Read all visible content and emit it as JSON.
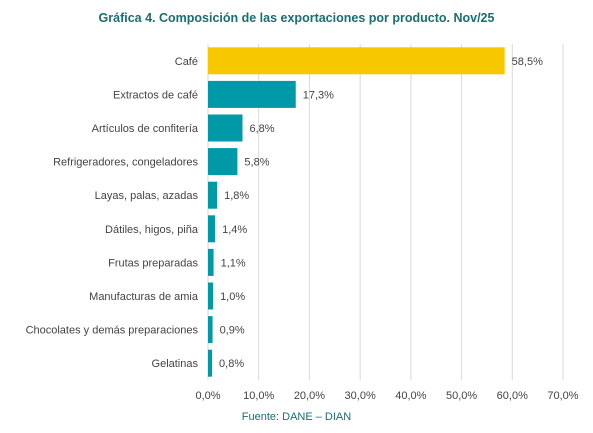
{
  "chart_data": {
    "type": "bar",
    "orientation": "horizontal",
    "title": "Gráfica 4. Composición de las exportaciones por producto. Nov/25",
    "source": "Fuente: DANE – DIAN",
    "categories": [
      "Café",
      "Extractos de café",
      "Artículos de confitería",
      "Refrigeradores, congeladores",
      "Layas, palas, azadas",
      "Dátiles, higos, piña",
      "Frutas preparadas",
      "Manufacturas de amia",
      "Chocolates y demás preparaciones",
      "Gelatinas"
    ],
    "values": [
      58.5,
      17.3,
      6.8,
      5.8,
      1.8,
      1.4,
      1.1,
      1.0,
      0.9,
      0.8
    ],
    "data_labels": [
      "58,5%",
      "17,3%",
      "6,8%",
      "5,8%",
      "1,8%",
      "1,4%",
      "1,1%",
      "1,0%",
      "0,9%",
      "0,8%"
    ],
    "xlim": [
      0,
      70
    ],
    "x_ticks": [
      0,
      10,
      20,
      30,
      40,
      50,
      60,
      70
    ],
    "x_tick_labels": [
      "0,0%",
      "10,0%",
      "20,0%",
      "30,0%",
      "40,0%",
      "50,0%",
      "60,0%",
      "70,0%"
    ],
    "grid": true,
    "colors": {
      "highlight": "#f7c800",
      "default": "#0099a8",
      "grid": "#d9d9d9",
      "title": "#1a6e72"
    }
  }
}
